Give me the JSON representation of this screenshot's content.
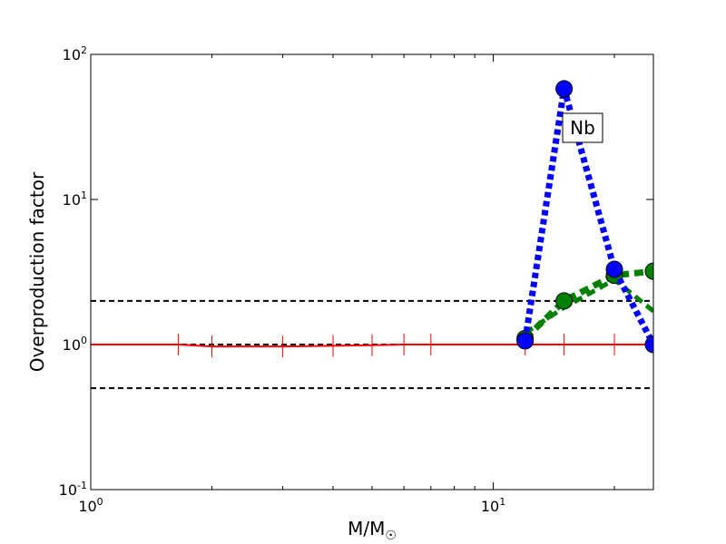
{
  "chart_data": {
    "type": "line",
    "xlabel": "M/M",
    "xlabel_sub": "☉",
    "ylabel": "Overproduction factor",
    "annotation": "Nb",
    "xscale": "log",
    "yscale": "log",
    "xlim": [
      1,
      25
    ],
    "ylim": [
      0.1,
      100
    ],
    "xticks": [
      {
        "value": 1,
        "label": "10",
        "exponent": "0"
      },
      {
        "value": 10,
        "label": "10",
        "exponent": "1"
      }
    ],
    "yticks": [
      {
        "value": 0.1,
        "label": "10",
        "exponent": "-1"
      },
      {
        "value": 1,
        "label": "10",
        "exponent": "0"
      },
      {
        "value": 10,
        "label": "10",
        "exponent": "1"
      },
      {
        "value": 100,
        "label": "10",
        "exponent": "2"
      }
    ],
    "reference_lines": [
      0.5,
      1,
      2
    ],
    "series": [
      {
        "color": "#ff0000",
        "style": "solid",
        "markers": "errorbar",
        "x": [
          1,
          1.65,
          2,
          3,
          4,
          5,
          6,
          7,
          12,
          15,
          20,
          25
        ],
        "values": [
          1.0,
          1.0,
          0.97,
          0.97,
          0.98,
          0.99,
          1.0,
          1.0,
          1.0,
          1.0,
          1.0,
          1.0
        ]
      },
      {
        "color": "#008000",
        "style": "dashed",
        "markers": "none",
        "x": [
          12,
          15,
          20,
          25
        ],
        "values": [
          1.2,
          1.8,
          2.8,
          1.7
        ]
      },
      {
        "color": "#008000",
        "style": "dashed",
        "markers": "circle",
        "x": [
          12,
          15,
          20,
          25
        ],
        "values": [
          1.1,
          2.0,
          3.0,
          3.2
        ]
      },
      {
        "color": "#0000ff",
        "style": "dotted",
        "markers": "circle",
        "x": [
          12,
          15,
          20,
          25
        ],
        "values": [
          1.06,
          58,
          3.3,
          1.0
        ]
      }
    ]
  }
}
